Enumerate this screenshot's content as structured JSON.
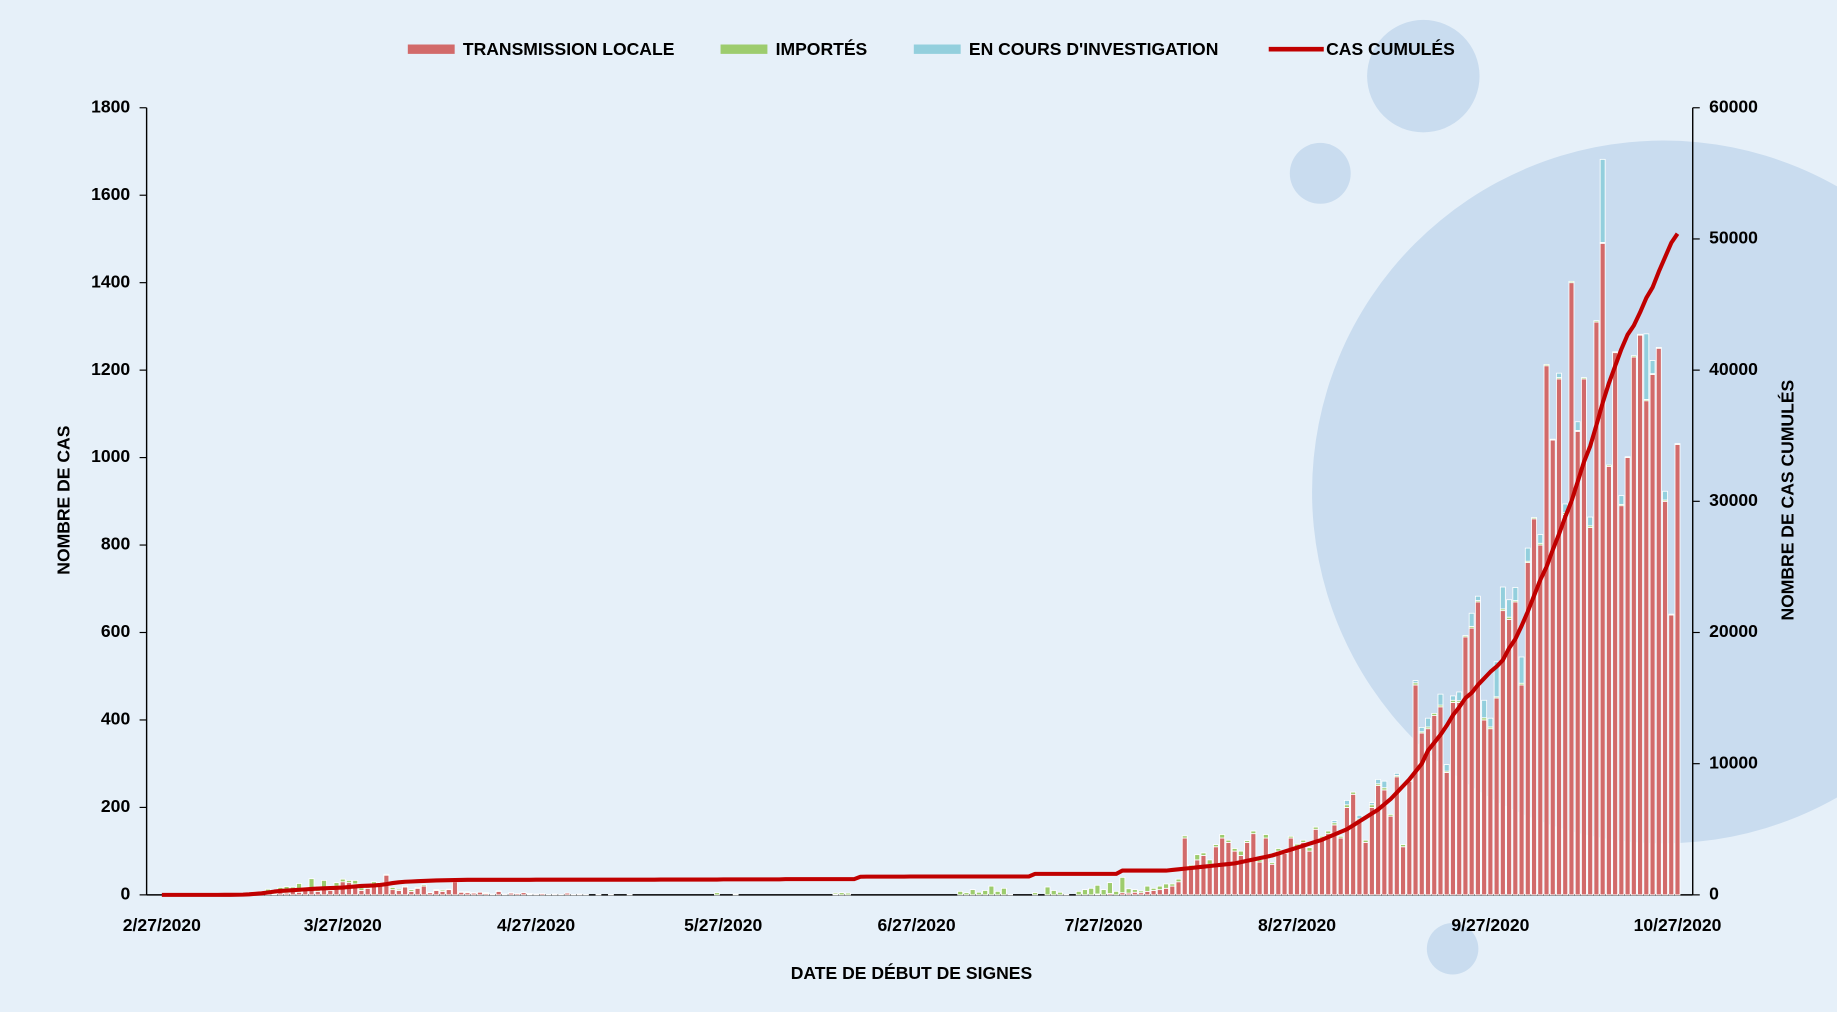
{
  "chart_data": {
    "type": "bar",
    "stacked": true,
    "xlabel": "DATE DE DÉBUT DE SIGNES",
    "ylabel": "NOMBRE DE CAS",
    "y2label": "NOMBRE DE CAS CUMULÉS",
    "categories": [
      "2/27/2020",
      null,
      null,
      null,
      null,
      null,
      null,
      null,
      null,
      null,
      null,
      null,
      null,
      null,
      null,
      null,
      null,
      null,
      null,
      null,
      null,
      null,
      null,
      null,
      null,
      null,
      null,
      null,
      null,
      "3/27/2020",
      null,
      null,
      null,
      null,
      null,
      null,
      null,
      null,
      null,
      null,
      null,
      null,
      null,
      null,
      null,
      null,
      null,
      null,
      null,
      null,
      null,
      null,
      null,
      null,
      null,
      null,
      null,
      null,
      null,
      null,
      "4/27/2020",
      null,
      null,
      null,
      null,
      null,
      null,
      null,
      null,
      null,
      null,
      null,
      null,
      null,
      null,
      null,
      null,
      null,
      null,
      null,
      null,
      null,
      null,
      null,
      null,
      null,
      null,
      null,
      null,
      null,
      "5/27/2020",
      null,
      null,
      null,
      null,
      null,
      null,
      null,
      null,
      null,
      null,
      null,
      null,
      null,
      null,
      null,
      null,
      null,
      null,
      null,
      null,
      null,
      null,
      null,
      null,
      null,
      null,
      null,
      null,
      null,
      null,
      "6/27/2020",
      null,
      null,
      null,
      null,
      null,
      null,
      null,
      null,
      null,
      null,
      null,
      null,
      null,
      null,
      null,
      null,
      null,
      null,
      null,
      null,
      null,
      null,
      null,
      null,
      null,
      null,
      null,
      null,
      null,
      "7/27/2020",
      null,
      null,
      null,
      null,
      null,
      null,
      null,
      null,
      null,
      null,
      null,
      null,
      null,
      null,
      null,
      null,
      null,
      null,
      null,
      null,
      null,
      null,
      null,
      null,
      null,
      null,
      null,
      null,
      null,
      null,
      "8/27/2020",
      null,
      null,
      null,
      null,
      null,
      null,
      null,
      null,
      null,
      null,
      null,
      null,
      null,
      null,
      null,
      null,
      null,
      null,
      null,
      null,
      null,
      null,
      null,
      null,
      null,
      null,
      null,
      null,
      null,
      null,
      "9/27/2020",
      null,
      null,
      null,
      null,
      null,
      null,
      null,
      null,
      null,
      null,
      null,
      null,
      null,
      null,
      null,
      null,
      null,
      null,
      null,
      null,
      null,
      null,
      null,
      null,
      null,
      null,
      null,
      null,
      null,
      "10/27/2020"
    ],
    "ylim": [
      0,
      1800
    ],
    "yticks": [
      0,
      200,
      400,
      600,
      800,
      1000,
      1200,
      1400,
      1600,
      1800
    ],
    "y2lim": [
      0,
      60000
    ],
    "y2ticks": [
      0,
      10000,
      20000,
      30000,
      40000,
      50000,
      60000
    ],
    "series": [
      {
        "name": "TRANSMISSION LOCALE",
        "color": "#d26a6a",
        "values": [
          0,
          0,
          0,
          0,
          0,
          0,
          0,
          0,
          0,
          0,
          0,
          0,
          0,
          0,
          1,
          2,
          0,
          3,
          2,
          5,
          4,
          8,
          6,
          10,
          12,
          8,
          15,
          10,
          20,
          30,
          28,
          25,
          10,
          15,
          20,
          25,
          45,
          12,
          10,
          18,
          8,
          15,
          20,
          5,
          10,
          8,
          12,
          30,
          6,
          5,
          4,
          6,
          3,
          2,
          8,
          2,
          4,
          3,
          5,
          2,
          2,
          3,
          1,
          2,
          1,
          4,
          1,
          2,
          1,
          0,
          1,
          0,
          1,
          0,
          0,
          1,
          0,
          0,
          0,
          0,
          0,
          0,
          0,
          0,
          0,
          0,
          0,
          0,
          0,
          0,
          0,
          0,
          0,
          0,
          0,
          0,
          0,
          0,
          0,
          0,
          0,
          0,
          0,
          0,
          0,
          0,
          0,
          0,
          1,
          0,
          0,
          0,
          0,
          0,
          0,
          0,
          0,
          0,
          0,
          0,
          0,
          0,
          0,
          0,
          0,
          0,
          0,
          0,
          0,
          0,
          0,
          0,
          0,
          0,
          0,
          0,
          1,
          0,
          0,
          0,
          0,
          0,
          0,
          0,
          0,
          1,
          0,
          0,
          0,
          0,
          2,
          0,
          3,
          0,
          5,
          4,
          6,
          5,
          8,
          10,
          12,
          15,
          20,
          30,
          130,
          60,
          80,
          90,
          70,
          110,
          130,
          120,
          100,
          90,
          120,
          140,
          75,
          130,
          70,
          100,
          95,
          130,
          110,
          120,
          100,
          150,
          130,
          140,
          160,
          130,
          200,
          230,
          170,
          120,
          200,
          250,
          240,
          180,
          270,
          110,
          260,
          480,
          370,
          380,
          410,
          430,
          280,
          440,
          440,
          590,
          610,
          670,
          400,
          380,
          450,
          650,
          630,
          670,
          480,
          760,
          860,
          800,
          1210,
          1040,
          1180,
          870,
          1400,
          1060,
          1180,
          840,
          1310,
          1490,
          980,
          1240,
          890,
          1000,
          1230,
          1280,
          1130,
          1190,
          1250,
          900,
          640,
          1030
        ]
      },
      {
        "name": "IMPORTÉS",
        "color": "#9dcc6e",
        "values": [
          0,
          0,
          0,
          0,
          0,
          0,
          0,
          0,
          0,
          0,
          0,
          0,
          0,
          2,
          3,
          5,
          8,
          10,
          5,
          12,
          15,
          10,
          20,
          8,
          25,
          12,
          18,
          10,
          8,
          6,
          5,
          8,
          6,
          4,
          10,
          3,
          2,
          5,
          3,
          2,
          4,
          2,
          3,
          1,
          2,
          3,
          1,
          2,
          1,
          2,
          1,
          0,
          2,
          0,
          1,
          0,
          1,
          0,
          0,
          1,
          0,
          0,
          0,
          0,
          0,
          0,
          0,
          0,
          0,
          0,
          0,
          0,
          0,
          0,
          0,
          0,
          0,
          0,
          0,
          0,
          0,
          0,
          0,
          0,
          0,
          0,
          0,
          0,
          0,
          5,
          0,
          0,
          2,
          0,
          0,
          0,
          0,
          0,
          0,
          0,
          0,
          0,
          0,
          0,
          0,
          0,
          0,
          0,
          3,
          5,
          4,
          0,
          0,
          0,
          0,
          0,
          0,
          0,
          0,
          0,
          0,
          0,
          0,
          0,
          0,
          0,
          0,
          0,
          8,
          5,
          12,
          6,
          10,
          20,
          8,
          15,
          0,
          0,
          0,
          0,
          5,
          0,
          18,
          10,
          6,
          0,
          0,
          8,
          12,
          15,
          20,
          12,
          25,
          8,
          35,
          10,
          6,
          4,
          12,
          5,
          8,
          10,
          5,
          6,
          5,
          8,
          12,
          6,
          10,
          5,
          8,
          5,
          6,
          10,
          4,
          6,
          5,
          8,
          4,
          6,
          5,
          4,
          6,
          5,
          8,
          5,
          4,
          6,
          5,
          4,
          6,
          5,
          4,
          5,
          6,
          4,
          5,
          4,
          3,
          5,
          4,
          5,
          3,
          4,
          5,
          4,
          3,
          5,
          4,
          3,
          4,
          3,
          5,
          4,
          3,
          4,
          5,
          3,
          4,
          3,
          3,
          4,
          3,
          2,
          3,
          4,
          3,
          2,
          3,
          4,
          3,
          2,
          3,
          2,
          3,
          2,
          3,
          2,
          3,
          2,
          2,
          3,
          2,
          2
        ]
      },
      {
        "name": "EN COURS D'INVESTIGATION",
        "color": "#93cfdd",
        "values": [
          0,
          0,
          0,
          0,
          0,
          0,
          0,
          0,
          0,
          0,
          0,
          0,
          0,
          0,
          0,
          0,
          0,
          0,
          0,
          0,
          0,
          0,
          0,
          0,
          0,
          0,
          0,
          0,
          0,
          0,
          0,
          0,
          0,
          0,
          0,
          0,
          0,
          0,
          0,
          0,
          0,
          0,
          0,
          0,
          0,
          0,
          0,
          0,
          0,
          0,
          0,
          0,
          0,
          0,
          0,
          0,
          0,
          0,
          0,
          0,
          0,
          0,
          0,
          0,
          0,
          0,
          0,
          0,
          0,
          0,
          0,
          0,
          0,
          0,
          0,
          0,
          0,
          0,
          0,
          0,
          0,
          0,
          0,
          0,
          0,
          0,
          0,
          0,
          0,
          0,
          0,
          0,
          0,
          0,
          0,
          0,
          0,
          0,
          0,
          0,
          0,
          0,
          0,
          0,
          0,
          0,
          0,
          0,
          0,
          0,
          0,
          0,
          0,
          0,
          0,
          0,
          0,
          0,
          0,
          0,
          0,
          0,
          0,
          0,
          0,
          0,
          0,
          0,
          0,
          0,
          0,
          0,
          0,
          0,
          0,
          0,
          0,
          0,
          0,
          0,
          0,
          0,
          0,
          0,
          0,
          0,
          0,
          0,
          0,
          0,
          0,
          0,
          0,
          0,
          0,
          0,
          0,
          0,
          0,
          0,
          0,
          0,
          0,
          0,
          0,
          0,
          0,
          0,
          0,
          0,
          0,
          0,
          0,
          0,
          0,
          0,
          0,
          0,
          0,
          0,
          0,
          0,
          0,
          0,
          0,
          0,
          0,
          0,
          5,
          0,
          10,
          0,
          8,
          0,
          5,
          10,
          15,
          0,
          5,
          0,
          0,
          5,
          10,
          20,
          0,
          25,
          15,
          10,
          20,
          0,
          30,
          10,
          40,
          20,
          80,
          50,
          40,
          30,
          60,
          30,
          0,
          20,
          0,
          0,
          10,
          20,
          0,
          20,
          0,
          20,
          0,
          190,
          0,
          0,
          20,
          0,
          0,
          0,
          150,
          30,
          0,
          20,
          0,
          0
        ]
      },
      {
        "name": "CAS CUMULÉS",
        "color": "#c00000",
        "type": "line",
        "axis": "y2",
        "values": [
          0,
          0,
          0,
          0,
          0,
          0,
          0,
          0,
          0,
          0,
          2,
          5,
          10,
          20,
          40,
          80,
          120,
          180,
          250,
          300,
          330,
          360,
          390,
          420,
          450,
          480,
          500,
          520,
          540,
          560,
          600,
          640,
          680,
          700,
          720,
          760,
          820,
          900,
          960,
          1000,
          1020,
          1040,
          1060,
          1080,
          1100,
          1110,
          1120,
          1130,
          1140,
          1150,
          1150,
          1150,
          1150,
          1150,
          1150,
          1150,
          1150,
          1150,
          1150,
          1150,
          1160,
          1160,
          1160,
          1160,
          1160,
          1160,
          1160,
          1160,
          1160,
          1160,
          1160,
          1160,
          1160,
          1160,
          1160,
          1160,
          1160,
          1160,
          1160,
          1160,
          1170,
          1170,
          1170,
          1170,
          1170,
          1170,
          1170,
          1170,
          1170,
          1170,
          1180,
          1180,
          1180,
          1180,
          1180,
          1180,
          1180,
          1180,
          1180,
          1180,
          1200,
          1200,
          1200,
          1200,
          1200,
          1200,
          1200,
          1200,
          1200,
          1200,
          1200,
          1200,
          1380,
          1390,
          1390,
          1390,
          1390,
          1390,
          1390,
          1390,
          1400,
          1400,
          1400,
          1400,
          1400,
          1400,
          1400,
          1400,
          1400,
          1400,
          1400,
          1400,
          1400,
          1400,
          1400,
          1400,
          1400,
          1400,
          1400,
          1400,
          1600,
          1600,
          1600,
          1600,
          1600,
          1600,
          1600,
          1600,
          1600,
          1600,
          1600,
          1600,
          1600,
          1600,
          1850,
          1850,
          1850,
          1850,
          1850,
          1850,
          1850,
          1850,
          1900,
          1950,
          2000,
          2050,
          2100,
          2150,
          2200,
          2250,
          2300,
          2350,
          2400,
          2500,
          2600,
          2700,
          2800,
          2900,
          3000,
          3150,
          3300,
          3450,
          3600,
          3750,
          3900,
          4050,
          4200,
          4400,
          4600,
          4800,
          5000,
          5300,
          5600,
          5900,
          6200,
          6500,
          6900,
          7300,
          7800,
          8300,
          8800,
          9400,
          10000,
          11000,
          11600,
          12200,
          12900,
          13700,
          14300,
          15000,
          15400,
          16000,
          16500,
          17000,
          17400,
          17900,
          18800,
          19500,
          20500,
          21600,
          22800,
          24000,
          25000,
          26300,
          27500,
          28800,
          30000,
          31500,
          33000,
          34200,
          35800,
          37500,
          39000,
          40300,
          41600,
          42700,
          43400,
          44400,
          45500,
          46300,
          47500,
          48600,
          49700,
          50400
        ]
      }
    ]
  }
}
